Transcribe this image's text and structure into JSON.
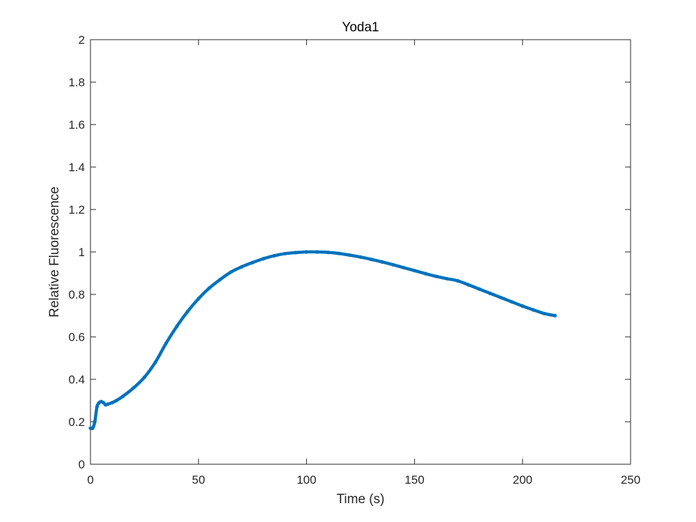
{
  "chart_data": {
    "type": "line",
    "title": "Yoda1",
    "xlabel": "Time (s)",
    "ylabel": "Relative Fluorescence",
    "xlim": [
      0,
      250
    ],
    "ylim": [
      0,
      2
    ],
    "xticks": [
      0,
      50,
      100,
      150,
      200,
      250
    ],
    "yticks": [
      0,
      0.2,
      0.4,
      0.6,
      0.8,
      1,
      1.2,
      1.4,
      1.6,
      1.8,
      2
    ],
    "xtick_labels": [
      "0",
      "50",
      "100",
      "150",
      "200",
      "250"
    ],
    "ytick_labels": [
      "0",
      "0.2",
      "0.4",
      "0.6",
      "0.8",
      "1",
      "1.2",
      "1.4",
      "1.6",
      "1.8",
      "2"
    ],
    "grid": false,
    "box": true,
    "series": [
      {
        "color": "#0072BD",
        "marker": "*",
        "x": [
          0,
          1,
          2,
          3,
          4,
          5,
          6,
          7,
          8,
          10,
          12,
          15,
          20,
          25,
          30,
          35,
          40,
          45,
          50,
          55,
          60,
          65,
          70,
          75,
          80,
          85,
          90,
          95,
          100,
          105,
          110,
          115,
          120,
          125,
          130,
          135,
          140,
          145,
          150,
          155,
          160,
          165,
          170,
          175,
          180,
          185,
          190,
          195,
          200,
          205,
          210,
          215
        ],
        "y": [
          0.17,
          0.17,
          0.2,
          0.27,
          0.29,
          0.295,
          0.29,
          0.28,
          0.283,
          0.29,
          0.3,
          0.32,
          0.36,
          0.41,
          0.48,
          0.57,
          0.65,
          0.72,
          0.78,
          0.83,
          0.87,
          0.905,
          0.93,
          0.95,
          0.968,
          0.982,
          0.992,
          0.997,
          1.0,
          1.0,
          0.998,
          0.993,
          0.985,
          0.976,
          0.965,
          0.953,
          0.94,
          0.926,
          0.912,
          0.898,
          0.885,
          0.874,
          0.864,
          0.845,
          0.825,
          0.805,
          0.785,
          0.765,
          0.745,
          0.727,
          0.71,
          0.7
        ]
      }
    ]
  }
}
